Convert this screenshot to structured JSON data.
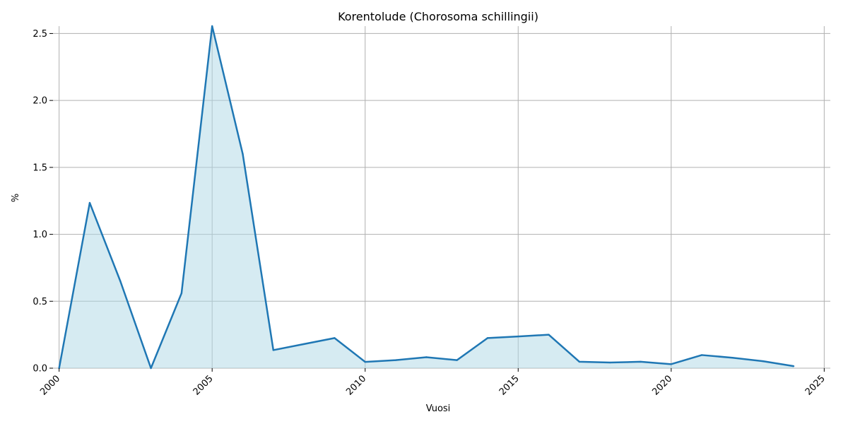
{
  "chart_data": {
    "type": "area",
    "title": "Korentolude (Chorosoma schillingii)",
    "xlabel": "Vuosi",
    "ylabel": "%",
    "x": [
      2000,
      2001,
      2002,
      2003,
      2004,
      2005,
      2006,
      2007,
      2008,
      2009,
      2010,
      2011,
      2012,
      2013,
      2014,
      2015,
      2016,
      2017,
      2018,
      2019,
      2020,
      2021,
      2022,
      2023,
      2024
    ],
    "series": [
      {
        "values": [
          0.0,
          1.235,
          0.65,
          0.0,
          0.56,
          2.555,
          1.6,
          0.135,
          0.18,
          0.225,
          0.047,
          0.06,
          0.082,
          0.06,
          0.225,
          0.237,
          0.25,
          0.048,
          0.042,
          0.048,
          0.03,
          0.098,
          0.078,
          0.052,
          0.015
        ],
        "line_color": "#1f77b4",
        "fill_color": "#add8e6"
      }
    ],
    "xlim": [
      1999.8,
      2025.2
    ],
    "ylim": [
      0,
      2.555
    ],
    "x_ticks": [
      "2000",
      "2005",
      "2010",
      "2015",
      "2020",
      "2025"
    ],
    "y_ticks": [
      "0.0",
      "0.5",
      "1.0",
      "1.5",
      "2.0",
      "2.5"
    ],
    "x_tick_values": [
      2000,
      2005,
      2010,
      2015,
      2020,
      2025
    ],
    "y_tick_values": [
      0,
      0.5,
      1.0,
      1.5,
      2.0,
      2.5
    ],
    "grid": true,
    "legend": "none"
  }
}
